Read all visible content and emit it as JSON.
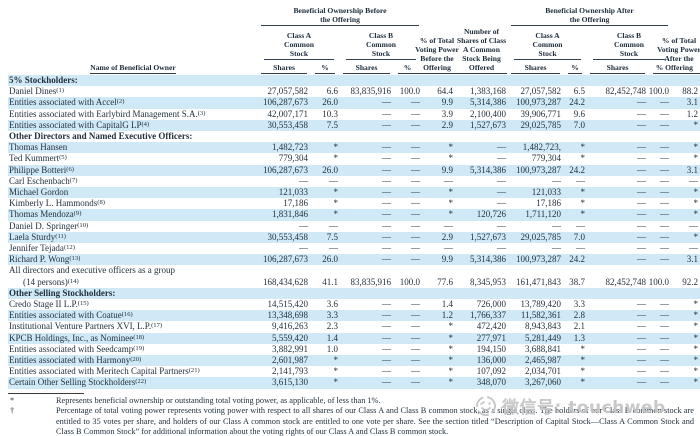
{
  "table": {
    "header": {
      "name_col": "Name of Beneficial Owner",
      "before_group": "Beneficial Ownership Before the Offering",
      "after_group": "Beneficial Ownership After the Offering",
      "class_a": "Class A Common Stock",
      "class_b": "Class B Common Stock",
      "voting_before": "% of Total Voting Power Before the Offering",
      "offered": "Number of Shares of Class A Common Stock Being Offered",
      "voting_after": "% of Total Voting Power After the Offering",
      "shares": "Shares",
      "pct": "%"
    },
    "rows": [
      {
        "type": "section",
        "label": "5% Stockholders:"
      },
      {
        "type": "data",
        "name": "Daniel Dines",
        "ref": "(1)",
        "values": [
          "27,057,582",
          "6.6",
          "83,835,916",
          "100.0",
          "64.4",
          "1,383,168",
          "27,057,582",
          "6.5",
          "82,452,748",
          "100.0",
          "88.2"
        ]
      },
      {
        "type": "data",
        "name": "Entities associated with Accel",
        "ref": "(2)",
        "values": [
          "106,287,673",
          "26.0",
          "—",
          "—",
          "9.9",
          "5,314,386",
          "100,973,287",
          "24.2",
          "—",
          "—",
          "3.1"
        ]
      },
      {
        "type": "data",
        "name": "Entities associated with Earlybird Management S.A.",
        "ref": "(3)",
        "values": [
          "42,007,171",
          "10.3",
          "—",
          "—",
          "3.9",
          "2,100,400",
          "39,906,771",
          "9.6",
          "—",
          "—",
          "1.2"
        ]
      },
      {
        "type": "data",
        "name": "Entities associated with CapitalG LP",
        "ref": "(4)",
        "values": [
          "30,553,458",
          "7.5",
          "—",
          "—",
          "2.9",
          "1,527,673",
          "29,025,785",
          "7.0",
          "—",
          "—",
          "*"
        ]
      },
      {
        "type": "section",
        "label": "Other Directors and Named Executive Officers:"
      },
      {
        "type": "data",
        "name": "Thomas Hansen",
        "ref": "",
        "values": [
          "1,482,723",
          "*",
          "—",
          "—",
          "*",
          "—",
          "1,482,723,",
          "*",
          "—",
          "—",
          "*"
        ]
      },
      {
        "type": "data",
        "name": "Ted Kummert",
        "ref": "(5)",
        "values": [
          "779,304",
          "*",
          "—",
          "—",
          "*",
          "—",
          "779,304",
          "*",
          "—",
          "—",
          "*"
        ]
      },
      {
        "type": "data",
        "name": "Philippe Botteri",
        "ref": "(6)",
        "values": [
          "106,287,673",
          "26.0",
          "—",
          "—",
          "9.9",
          "5,314,386",
          "100,973,287",
          "24.2",
          "—",
          "—",
          "3.1"
        ]
      },
      {
        "type": "data",
        "name": "Carl Eschenbach",
        "ref": "(7)",
        "values": [
          "—",
          "—",
          "—",
          "—",
          "—",
          "—",
          "—",
          "—",
          "—",
          "—",
          "—"
        ]
      },
      {
        "type": "data",
        "name": "Michael Gordon",
        "ref": "",
        "values": [
          "121,033",
          "*",
          "—",
          "—",
          "*",
          "—",
          "121,033",
          "*",
          "—",
          "—",
          "*"
        ]
      },
      {
        "type": "data",
        "name": "Kimberly L. Hammonds",
        "ref": "(8)",
        "values": [
          "17,186",
          "*",
          "—",
          "—",
          "*",
          "—",
          "17,186",
          "*",
          "—",
          "—",
          "*"
        ]
      },
      {
        "type": "data",
        "name": "Thomas Mendoza",
        "ref": "(9)",
        "values": [
          "1,831,846",
          "*",
          "—",
          "—",
          "*",
          "120,726",
          "1,711,120",
          "*",
          "—",
          "—",
          "*"
        ]
      },
      {
        "type": "data",
        "name": "Daniel D. Springer",
        "ref": "(10)",
        "values": [
          "—",
          "—",
          "—",
          "—",
          "—",
          "—",
          "—",
          "—",
          "—",
          "—",
          "—"
        ]
      },
      {
        "type": "data",
        "name": "Laela Sturdy",
        "ref": "(11)",
        "values": [
          "30,553,458",
          "7.5",
          "—",
          "—",
          "2.9",
          "1,527,673",
          "29,025,785",
          "7.0",
          "—",
          "—",
          "*"
        ]
      },
      {
        "type": "data",
        "name": "Jennifer Tejada",
        "ref": "(12)",
        "values": [
          "—",
          "—",
          "—",
          "—",
          "—",
          "—",
          "—",
          "—",
          "—",
          "—",
          "—"
        ]
      },
      {
        "type": "data",
        "name": "Richard P. Wong",
        "ref": "(13)",
        "values": [
          "106,287,673",
          "26.0",
          "—",
          "—",
          "9.9",
          "5,314,386",
          "100,973,287",
          "24.2",
          "—",
          "—",
          "3.1"
        ]
      },
      {
        "type": "group",
        "line1": "All directors and executive officers as a group",
        "line2": "(14 persons)",
        "ref": "(14)",
        "values": [
          "168,434,628",
          "41.1",
          "83,835,916",
          "100.0",
          "77.6",
          "8,345,953",
          "161,471,843",
          "38.7",
          "82,452,748",
          "100.0",
          "92.2"
        ]
      },
      {
        "type": "section",
        "label": "Other Selling Stockholders:"
      },
      {
        "type": "data",
        "name": "Credo Stage II L.P.",
        "ref": "(15)",
        "values": [
          "14,515,420",
          "3.6",
          "—",
          "—",
          "1.4",
          "726,000",
          "13,789,420",
          "3.3",
          "—",
          "—",
          "*"
        ]
      },
      {
        "type": "data",
        "name": "Entities associated with Coatue",
        "ref": "(16)",
        "values": [
          "13,348,698",
          "3.3",
          "—",
          "—",
          "1.2",
          "1,766,337",
          "11,582,361",
          "2.8",
          "—",
          "—",
          "*"
        ]
      },
      {
        "type": "data",
        "name": "Institutional Venture Partners XVI, L.P.",
        "ref": "(17)",
        "values": [
          "9,416,263",
          "2.3",
          "—",
          "—",
          "*",
          "472,420",
          "8,943,843",
          "2.1",
          "—",
          "—",
          "*"
        ]
      },
      {
        "type": "data",
        "name": "KPCB Holdings, Inc., as Nominee",
        "ref": "(18)",
        "values": [
          "5,559,420",
          "1.4",
          "—",
          "—",
          "*",
          "277,971",
          "5,281,449",
          "1.3",
          "—",
          "—",
          "*"
        ]
      },
      {
        "type": "data",
        "name": "Entities associated with Seedcamp",
        "ref": "(19)",
        "values": [
          "3,882,991",
          "1.0",
          "—",
          "—",
          "*",
          "194,150",
          "3,688,841",
          "*",
          "—",
          "—",
          "*"
        ]
      },
      {
        "type": "data",
        "name": "Entities associated with Harmony",
        "ref": "(20)",
        "values": [
          "2,601,987",
          "*",
          "—",
          "—",
          "*",
          "136,000",
          "2,465,987",
          "*",
          "—",
          "—",
          "*"
        ]
      },
      {
        "type": "data",
        "name": "Entities associated with Meritech Capital Partners",
        "ref": "(21)",
        "values": [
          "2,141,793",
          "*",
          "—",
          "—",
          "*",
          "107,092",
          "2,034,701",
          "*",
          "—",
          "—",
          "*"
        ]
      },
      {
        "type": "data",
        "name": "Certain Other Selling Stockholders",
        "ref": "(22)",
        "values": [
          "3,615,130",
          "*",
          "—",
          "—",
          "*",
          "348,070",
          "3,267,060",
          "*",
          "—",
          "—",
          "*"
        ]
      }
    ]
  },
  "footnotes": [
    {
      "marker": "*",
      "text": "Represents beneficial ownership or outstanding total voting power, as applicable, of less than 1%."
    },
    {
      "marker": "†",
      "text": "Percentage of total voting power represents voting power with respect to all shares of our Class A and Class B common stock, as a single class. The holders of our Class B common stock are entitled to 35 votes per share, and holders of our Class A common stock are entitled to one vote per share. See the section titled “Description of Capital Stock—Class A Common Stock and Class B Common Stock” for additional information about the voting rights of our Class A and Class B common stock."
    }
  ],
  "watermark": {
    "icon": "wink-face-icon",
    "text": "微信号: touchweb"
  },
  "colors": {
    "stripe": "#cfe9f7",
    "text": "#23313f",
    "rule": "#31404f",
    "watermark": "#c6c6c6"
  }
}
